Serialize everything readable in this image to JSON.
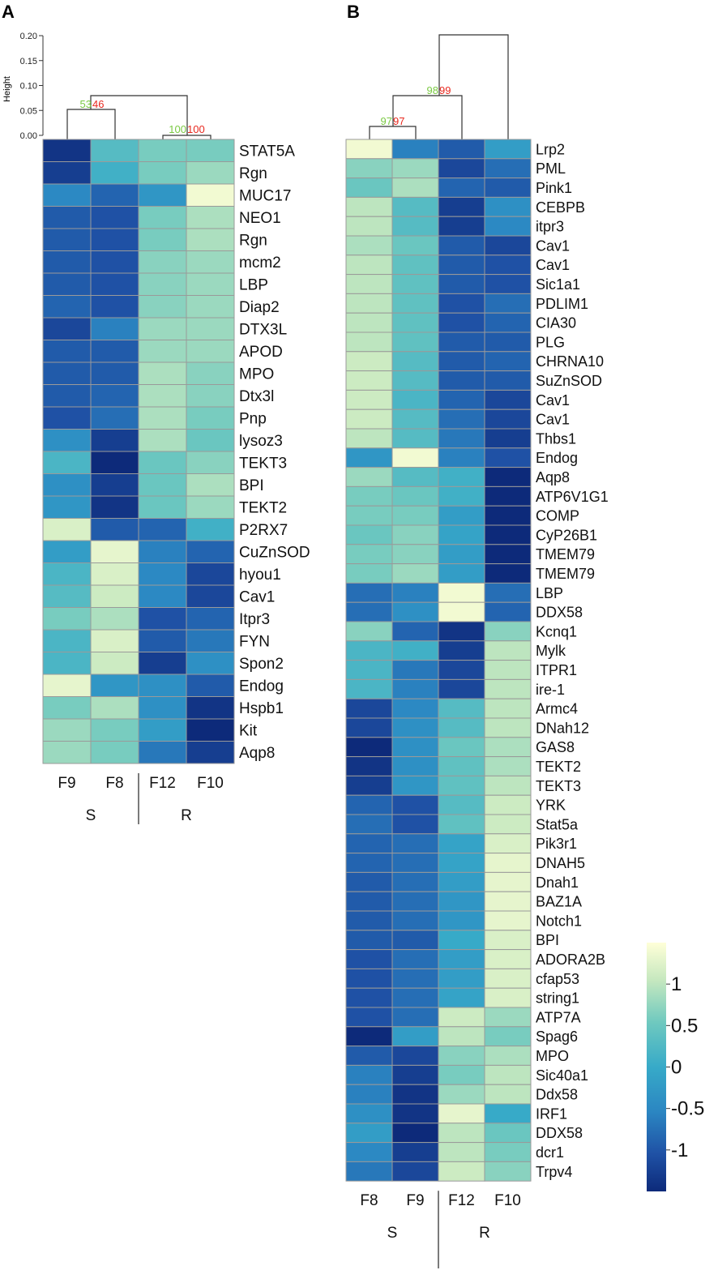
{
  "chart_data": [
    {
      "type": "heatmap",
      "panel_label": "A",
      "ylabel": "Height",
      "y_ticks": [
        "0.20",
        "0.15",
        "0.10",
        "0.05",
        "0.00"
      ],
      "ylim": [
        0,
        0.2
      ],
      "columns": [
        "F9",
        "F8",
        "F12",
        "F10"
      ],
      "groups": [
        {
          "label": "S",
          "columns": [
            "F9",
            "F8"
          ]
        },
        {
          "label": "R",
          "columns": [
            "F12",
            "F10"
          ]
        }
      ],
      "dendrogram_support": [
        {
          "green": "53",
          "red": "46"
        },
        {
          "green": "100",
          "red": "100"
        }
      ],
      "rows": [
        "STAT5A",
        "Rgn",
        "MUC17",
        "NEO1",
        "Rgn",
        "mcm2",
        "LBP",
        "Diap2",
        "DTX3L",
        "APOD",
        "MPO",
        "Dtx3l",
        "Pnp",
        "lysoz3",
        "TEKT3",
        "BPI",
        "TEKT2",
        "P2RX7",
        "CuZnSOD",
        "hyou1",
        "Cav1",
        "Itpr3",
        "FYN",
        "Spon2",
        "Endog",
        "Hspb1",
        "Kit",
        "Aqp8"
      ],
      "values": [
        [
          -1.4,
          0.3,
          0.6,
          0.6
        ],
        [
          -1.3,
          0.1,
          0.6,
          0.8
        ],
        [
          -0.5,
          -0.9,
          -0.3,
          1.4
        ],
        [
          -1.0,
          -1.1,
          0.6,
          0.9
        ],
        [
          -1.0,
          -1.1,
          0.6,
          0.9
        ],
        [
          -1.0,
          -1.1,
          0.7,
          0.8
        ],
        [
          -1.0,
          -1.1,
          0.7,
          0.8
        ],
        [
          -0.9,
          -1.1,
          0.7,
          0.8
        ],
        [
          -1.2,
          -0.6,
          0.8,
          0.8
        ],
        [
          -1.0,
          -1.0,
          0.8,
          0.8
        ],
        [
          -1.0,
          -1.0,
          0.9,
          0.7
        ],
        [
          -1.0,
          -0.9,
          0.9,
          0.7
        ],
        [
          -1.1,
          -0.8,
          0.9,
          0.6
        ],
        [
          -0.4,
          -1.3,
          0.9,
          0.5
        ],
        [
          0.2,
          -1.5,
          0.5,
          0.7
        ],
        [
          -0.4,
          -1.3,
          0.5,
          0.9
        ],
        [
          -0.3,
          -1.4,
          0.5,
          0.8
        ],
        [
          1.2,
          -1.0,
          -0.9,
          0.1
        ],
        [
          -0.2,
          1.3,
          -0.6,
          -0.9
        ],
        [
          0.2,
          1.2,
          -0.5,
          -1.2
        ],
        [
          0.3,
          1.1,
          -0.5,
          -1.2
        ],
        [
          0.6,
          0.9,
          -1.1,
          -0.9
        ],
        [
          0.2,
          1.2,
          -1.0,
          -0.7
        ],
        [
          0.2,
          1.1,
          -1.3,
          -0.4
        ],
        [
          1.3,
          -0.3,
          -0.4,
          -1.0
        ],
        [
          0.6,
          0.9,
          -0.4,
          -1.4
        ],
        [
          0.8,
          0.6,
          -0.2,
          -1.5
        ],
        [
          0.8,
          0.6,
          -0.7,
          -1.3
        ]
      ]
    },
    {
      "type": "heatmap",
      "panel_label": "B",
      "columns": [
        "F8",
        "F9",
        "F12",
        "F10"
      ],
      "groups": [
        {
          "label": "S",
          "columns": [
            "F8",
            "F9"
          ]
        },
        {
          "label": "R",
          "columns": [
            "F12",
            "F10"
          ]
        }
      ],
      "dendrogram_support": [
        {
          "green": "97",
          "red": "97"
        },
        {
          "green": "98",
          "red": "99"
        }
      ],
      "legend": {
        "ticks": [
          "1",
          "0.5",
          "0",
          "-0.5",
          "-1"
        ],
        "range": [
          -1.5,
          1.5
        ]
      },
      "rows": [
        "Lrp2",
        "PML",
        "Pink1",
        "CEBPB",
        "itpr3",
        "Cav1",
        "Cav1",
        "Sic1a1",
        "PDLIM1",
        "CIA30",
        "PLG",
        "CHRNA10",
        "SuZnSOD",
        "Cav1",
        "Cav1",
        "Thbs1",
        "Endog",
        "Aqp8",
        "ATP6V1G1",
        "COMP",
        "CyP26B1",
        "TMEM79",
        "TMEM79",
        "LBP",
        "DDX58",
        "Kcnq1",
        "Mylk",
        "ITPR1",
        "ire-1",
        "Armc4",
        "DNah12",
        "GAS8",
        "TEKT2",
        "TEKT3",
        "YRK",
        "Stat5a",
        "Pik3r1",
        "DNAH5",
        "Dnah1",
        "BAZ1A",
        "Notch1",
        "BPI",
        "ADORA2B",
        "cfap53",
        "string1",
        "ATP7A",
        "Spag6",
        "MPO",
        "Sic40a1",
        "Ddx58",
        "IRF1",
        "DDX58",
        "dcr1",
        "Trpv4"
      ],
      "values": [
        [
          1.4,
          -0.6,
          -1.0,
          -0.2
        ],
        [
          0.7,
          0.8,
          -1.2,
          -0.8
        ],
        [
          0.5,
          0.9,
          -0.9,
          -1.0
        ],
        [
          1.0,
          0.3,
          -1.3,
          -0.4
        ],
        [
          1.0,
          0.3,
          -1.3,
          -0.5
        ],
        [
          0.9,
          0.5,
          -1.0,
          -1.2
        ],
        [
          1.0,
          0.4,
          -1.0,
          -1.1
        ],
        [
          1.0,
          0.4,
          -1.0,
          -1.1
        ],
        [
          1.0,
          0.4,
          -1.1,
          -0.8
        ],
        [
          1.0,
          0.4,
          -1.1,
          -0.9
        ],
        [
          1.0,
          0.4,
          -1.0,
          -1.0
        ],
        [
          1.1,
          0.3,
          -1.0,
          -0.9
        ],
        [
          1.1,
          0.3,
          -1.0,
          -1.0
        ],
        [
          1.1,
          0.2,
          -0.9,
          -1.2
        ],
        [
          1.1,
          0.3,
          -0.8,
          -1.2
        ],
        [
          1.0,
          0.3,
          -0.7,
          -1.3
        ],
        [
          -0.3,
          1.4,
          -0.6,
          -1.1
        ],
        [
          0.8,
          0.3,
          0.1,
          -1.5
        ],
        [
          0.6,
          0.5,
          0.1,
          -1.6
        ],
        [
          0.6,
          0.6,
          -0.2,
          -1.6
        ],
        [
          0.5,
          0.7,
          -0.1,
          -1.5
        ],
        [
          0.6,
          0.7,
          -0.2,
          -1.5
        ],
        [
          0.6,
          0.8,
          -0.2,
          -1.5
        ],
        [
          -0.8,
          -0.6,
          1.4,
          -0.8
        ],
        [
          -0.8,
          -0.4,
          1.4,
          -0.9
        ],
        [
          0.7,
          -0.9,
          -1.4,
          0.7
        ],
        [
          0.2,
          0.1,
          -1.3,
          1.0
        ],
        [
          0.2,
          -0.7,
          -1.2,
          1.0
        ],
        [
          0.2,
          -0.6,
          -1.2,
          1.0
        ],
        [
          -1.2,
          -0.5,
          0.3,
          1.0
        ],
        [
          -1.2,
          -0.4,
          0.3,
          1.0
        ],
        [
          -1.5,
          -0.4,
          0.5,
          0.9
        ],
        [
          -1.4,
          -0.4,
          0.4,
          0.9
        ],
        [
          -1.3,
          -0.3,
          0.4,
          1.0
        ],
        [
          -0.9,
          -1.1,
          0.3,
          1.1
        ],
        [
          -0.8,
          -1.1,
          0.4,
          1.1
        ],
        [
          -0.9,
          -0.8,
          -0.1,
          1.2
        ],
        [
          -0.9,
          -0.8,
          -0.1,
          1.3
        ],
        [
          -1.0,
          -0.8,
          -0.2,
          1.3
        ],
        [
          -1.0,
          -0.8,
          -0.3,
          1.3
        ],
        [
          -1.0,
          -0.8,
          -0.3,
          1.3
        ],
        [
          -1.0,
          -1.0,
          0.0,
          1.2
        ],
        [
          -1.1,
          -0.8,
          -0.2,
          1.2
        ],
        [
          -1.1,
          -0.8,
          -0.2,
          1.2
        ],
        [
          -1.1,
          -0.8,
          -0.1,
          1.2
        ],
        [
          -1.1,
          -0.8,
          1.1,
          0.8
        ],
        [
          -1.5,
          -0.2,
          1.0,
          0.6
        ],
        [
          -1.0,
          -1.2,
          0.7,
          0.9
        ],
        [
          -0.6,
          -1.3,
          0.6,
          1.0
        ],
        [
          -0.6,
          -1.4,
          0.8,
          1.0
        ],
        [
          -0.4,
          -1.4,
          1.3,
          0.0
        ],
        [
          -0.2,
          -1.5,
          1.0,
          0.5
        ],
        [
          -0.5,
          -1.3,
          1.0,
          0.6
        ],
        [
          -0.7,
          -1.2,
          1.1,
          0.7
        ]
      ]
    }
  ]
}
